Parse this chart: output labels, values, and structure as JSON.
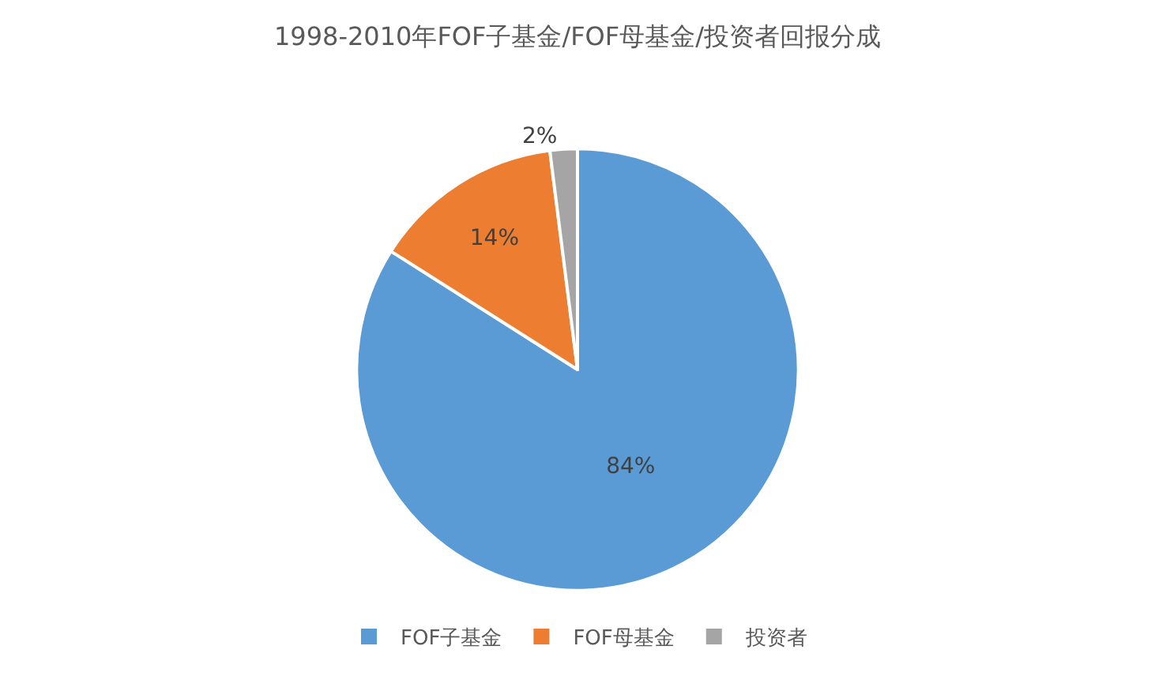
{
  "chart_data": {
    "type": "pie",
    "title": "1998-2010年FOF子基金/FOF母基金/投资者回报分成",
    "categories": [
      "FOF子基金",
      "FOF母基金",
      "投资者"
    ],
    "values": [
      84,
      14,
      2
    ],
    "colors": [
      "#5b9bd5",
      "#ed7d31",
      "#a5a5a5"
    ],
    "value_labels": [
      "84%",
      "14%",
      "2%"
    ],
    "legend": "bottom"
  }
}
